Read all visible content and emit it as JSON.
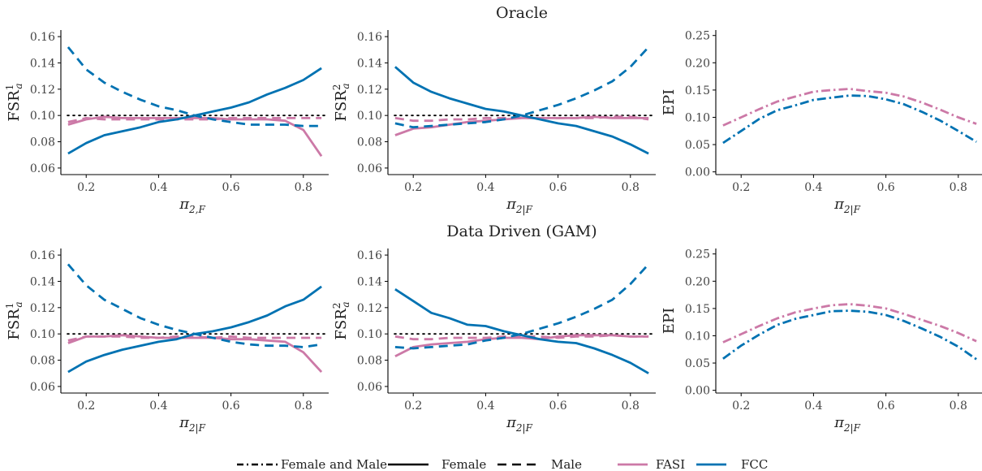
{
  "colors": {
    "FASI": "#CC79A7",
    "FCC": "#0072B2",
    "reference": "#000000"
  },
  "row_titles": [
    "Oracle",
    "Data Driven (GAM)"
  ],
  "legend": {
    "linetype": [
      {
        "label": "Female and Male",
        "dash": "dotdash"
      },
      {
        "label": "Female",
        "dash": "solid"
      },
      {
        "label": "Male",
        "dash": "dashed"
      }
    ],
    "color": [
      {
        "label": "FASI",
        "color_key": "FASI"
      },
      {
        "label": "FCC",
        "color_key": "FCC"
      }
    ]
  },
  "chart_data": [
    {
      "type": "line",
      "row": 0,
      "col": 0,
      "ylabel": "FSR_a^1",
      "xlabel": "π_{2,F}",
      "xlim": [
        0.13,
        0.87
      ],
      "ylim": [
        0.055,
        0.165
      ],
      "xticks": [
        0.2,
        0.4,
        0.6,
        0.8
      ],
      "yticks": [
        0.06,
        0.08,
        0.1,
        0.12,
        0.14,
        0.16
      ],
      "ytick_labels": [
        "0.06",
        "0.08",
        "0.10",
        "0.12",
        "0.14",
        "0.16"
      ],
      "reference_line": 0.1,
      "x": [
        0.15,
        0.2,
        0.25,
        0.3,
        0.35,
        0.4,
        0.45,
        0.5,
        0.55,
        0.6,
        0.65,
        0.7,
        0.75,
        0.8,
        0.85
      ],
      "series": [
        {
          "method": "FASI",
          "group": "Female",
          "values": [
            0.093,
            0.097,
            0.099,
            0.098,
            0.098,
            0.098,
            0.098,
            0.098,
            0.098,
            0.097,
            0.097,
            0.097,
            0.096,
            0.089,
            0.069
          ]
        },
        {
          "method": "FASI",
          "group": "Male",
          "values": [
            0.095,
            0.098,
            0.097,
            0.097,
            0.097,
            0.097,
            0.097,
            0.097,
            0.097,
            0.098,
            0.098,
            0.098,
            0.098,
            0.098,
            0.098
          ]
        },
        {
          "method": "FCC",
          "group": "Female",
          "values": [
            0.071,
            0.079,
            0.085,
            0.088,
            0.091,
            0.095,
            0.097,
            0.1,
            0.103,
            0.106,
            0.11,
            0.116,
            0.121,
            0.127,
            0.136
          ]
        },
        {
          "method": "FCC",
          "group": "Male",
          "values": [
            0.152,
            0.135,
            0.125,
            0.118,
            0.112,
            0.107,
            0.104,
            0.1,
            0.097,
            0.095,
            0.093,
            0.093,
            0.093,
            0.092,
            0.092
          ]
        }
      ]
    },
    {
      "type": "line",
      "row": 0,
      "col": 1,
      "ylabel": "FSR_a^2",
      "xlabel": "π_{2|F}",
      "xlim": [
        0.13,
        0.87
      ],
      "ylim": [
        0.055,
        0.165
      ],
      "xticks": [
        0.2,
        0.4,
        0.6,
        0.8
      ],
      "yticks": [
        0.06,
        0.08,
        0.1,
        0.12,
        0.14,
        0.16
      ],
      "ytick_labels": [
        "0.06",
        "0.08",
        "0.10",
        "0.12",
        "0.14",
        "0.16"
      ],
      "reference_line": 0.1,
      "x": [
        0.15,
        0.2,
        0.25,
        0.3,
        0.35,
        0.4,
        0.45,
        0.5,
        0.55,
        0.6,
        0.65,
        0.7,
        0.75,
        0.8,
        0.85
      ],
      "series": [
        {
          "method": "FASI",
          "group": "Female",
          "values": [
            0.085,
            0.09,
            0.091,
            0.093,
            0.095,
            0.096,
            0.097,
            0.098,
            0.098,
            0.098,
            0.098,
            0.099,
            0.098,
            0.098,
            0.098
          ]
        },
        {
          "method": "FASI",
          "group": "Male",
          "values": [
            0.098,
            0.096,
            0.096,
            0.097,
            0.097,
            0.098,
            0.098,
            0.098,
            0.098,
            0.098,
            0.098,
            0.098,
            0.099,
            0.099,
            0.097
          ]
        },
        {
          "method": "FCC",
          "group": "Female",
          "values": [
            0.137,
            0.125,
            0.118,
            0.113,
            0.109,
            0.105,
            0.103,
            0.1,
            0.097,
            0.094,
            0.092,
            0.088,
            0.084,
            0.078,
            0.071
          ]
        },
        {
          "method": "FCC",
          "group": "Male",
          "values": [
            0.094,
            0.091,
            0.092,
            0.093,
            0.094,
            0.095,
            0.097,
            0.1,
            0.104,
            0.108,
            0.113,
            0.119,
            0.126,
            0.137,
            0.152
          ]
        }
      ]
    },
    {
      "type": "line",
      "row": 0,
      "col": 2,
      "ylabel": "EPI",
      "xlabel": "π_{2|F}",
      "xlim": [
        0.13,
        0.87
      ],
      "ylim": [
        -0.005,
        0.26
      ],
      "xticks": [
        0.2,
        0.4,
        0.6,
        0.8
      ],
      "yticks": [
        0.0,
        0.05,
        0.1,
        0.15,
        0.2,
        0.25
      ],
      "ytick_labels": [
        "0.00",
        "0.05",
        "0.10",
        "0.15",
        "0.20",
        "0.25"
      ],
      "reference_line": null,
      "x": [
        0.15,
        0.2,
        0.25,
        0.3,
        0.35,
        0.4,
        0.45,
        0.5,
        0.55,
        0.6,
        0.65,
        0.7,
        0.75,
        0.8,
        0.85
      ],
      "series": [
        {
          "method": "FASI",
          "group": "Female and Male",
          "values": [
            0.085,
            0.1,
            0.115,
            0.129,
            0.138,
            0.147,
            0.15,
            0.152,
            0.148,
            0.145,
            0.138,
            0.127,
            0.114,
            0.1,
            0.088
          ]
        },
        {
          "method": "FCC",
          "group": "Female and Male",
          "values": [
            0.053,
            0.075,
            0.097,
            0.113,
            0.122,
            0.132,
            0.136,
            0.14,
            0.139,
            0.133,
            0.124,
            0.11,
            0.094,
            0.075,
            0.055
          ]
        }
      ]
    },
    {
      "type": "line",
      "row": 1,
      "col": 0,
      "ylabel": "FSR_a^1",
      "xlabel": "π_{2|F}",
      "xlim": [
        0.13,
        0.87
      ],
      "ylim": [
        0.055,
        0.165
      ],
      "xticks": [
        0.2,
        0.4,
        0.6,
        0.8
      ],
      "yticks": [
        0.06,
        0.08,
        0.1,
        0.12,
        0.14,
        0.16
      ],
      "ytick_labels": [
        "0.06",
        "0.08",
        "0.10",
        "0.12",
        "0.14",
        "0.16"
      ],
      "reference_line": 0.1,
      "x": [
        0.15,
        0.2,
        0.25,
        0.3,
        0.35,
        0.4,
        0.45,
        0.5,
        0.55,
        0.6,
        0.65,
        0.7,
        0.75,
        0.8,
        0.85
      ],
      "series": [
        {
          "method": "FASI",
          "group": "Female",
          "values": [
            0.093,
            0.098,
            0.098,
            0.099,
            0.098,
            0.097,
            0.097,
            0.097,
            0.097,
            0.096,
            0.096,
            0.095,
            0.094,
            0.086,
            0.071
          ]
        },
        {
          "method": "FASI",
          "group": "Male",
          "values": [
            0.095,
            0.098,
            0.098,
            0.098,
            0.097,
            0.097,
            0.098,
            0.098,
            0.097,
            0.098,
            0.097,
            0.097,
            0.097,
            0.097,
            0.097
          ]
        },
        {
          "method": "FCC",
          "group": "Female",
          "values": [
            0.071,
            0.079,
            0.084,
            0.088,
            0.091,
            0.094,
            0.096,
            0.1,
            0.102,
            0.105,
            0.109,
            0.114,
            0.121,
            0.126,
            0.136
          ]
        },
        {
          "method": "FCC",
          "group": "Male",
          "values": [
            0.153,
            0.137,
            0.126,
            0.119,
            0.112,
            0.107,
            0.103,
            0.1,
            0.097,
            0.094,
            0.092,
            0.091,
            0.091,
            0.09,
            0.092
          ]
        }
      ]
    },
    {
      "type": "line",
      "row": 1,
      "col": 1,
      "ylabel": "FSR_a^2",
      "xlabel": "π_{2|F}",
      "xlim": [
        0.13,
        0.87
      ],
      "ylim": [
        0.055,
        0.165
      ],
      "xticks": [
        0.2,
        0.4,
        0.6,
        0.8
      ],
      "yticks": [
        0.06,
        0.08,
        0.1,
        0.12,
        0.14,
        0.16
      ],
      "ytick_labels": [
        "0.06",
        "0.08",
        "0.10",
        "0.12",
        "0.14",
        "0.16"
      ],
      "reference_line": 0.1,
      "x": [
        0.15,
        0.2,
        0.25,
        0.3,
        0.35,
        0.4,
        0.45,
        0.5,
        0.55,
        0.6,
        0.65,
        0.7,
        0.75,
        0.8,
        0.85
      ],
      "series": [
        {
          "method": "FASI",
          "group": "Female",
          "values": [
            0.083,
            0.09,
            0.092,
            0.093,
            0.094,
            0.096,
            0.097,
            0.097,
            0.096,
            0.098,
            0.099,
            0.099,
            0.099,
            0.098,
            0.098
          ]
        },
        {
          "method": "FASI",
          "group": "Male",
          "values": [
            0.098,
            0.096,
            0.096,
            0.097,
            0.097,
            0.097,
            0.098,
            0.098,
            0.098,
            0.097,
            0.098,
            0.098,
            0.099,
            0.098,
            0.098
          ]
        },
        {
          "method": "FCC",
          "group": "Female",
          "values": [
            0.134,
            0.125,
            0.116,
            0.112,
            0.107,
            0.106,
            0.102,
            0.099,
            0.096,
            0.094,
            0.093,
            0.089,
            0.084,
            0.078,
            0.07
          ]
        },
        {
          "method": "FCC",
          "group": "Male",
          "values": [
            0.09,
            0.089,
            0.09,
            0.091,
            0.092,
            0.095,
            0.097,
            0.1,
            0.104,
            0.108,
            0.113,
            0.119,
            0.126,
            0.138,
            0.153
          ]
        }
      ]
    },
    {
      "type": "line",
      "row": 1,
      "col": 2,
      "ylabel": "EPI",
      "xlabel": "π_{2|F}",
      "xlim": [
        0.13,
        0.87
      ],
      "ylim": [
        -0.005,
        0.26
      ],
      "xticks": [
        0.2,
        0.4,
        0.6,
        0.8
      ],
      "yticks": [
        0.0,
        0.05,
        0.1,
        0.15,
        0.2,
        0.25
      ],
      "ytick_labels": [
        "0.00",
        "0.05",
        "0.10",
        "0.15",
        "0.20",
        "0.25"
      ],
      "reference_line": null,
      "x": [
        0.15,
        0.2,
        0.25,
        0.3,
        0.35,
        0.4,
        0.45,
        0.5,
        0.55,
        0.6,
        0.65,
        0.7,
        0.75,
        0.8,
        0.85
      ],
      "series": [
        {
          "method": "FASI",
          "group": "Female and Male",
          "values": [
            0.088,
            0.103,
            0.118,
            0.132,
            0.143,
            0.15,
            0.156,
            0.158,
            0.155,
            0.15,
            0.14,
            0.129,
            0.118,
            0.105,
            0.09
          ]
        },
        {
          "method": "FCC",
          "group": "Female and Male",
          "values": [
            0.058,
            0.082,
            0.102,
            0.12,
            0.131,
            0.138,
            0.145,
            0.146,
            0.144,
            0.138,
            0.127,
            0.113,
            0.098,
            0.08,
            0.057
          ]
        }
      ]
    }
  ]
}
